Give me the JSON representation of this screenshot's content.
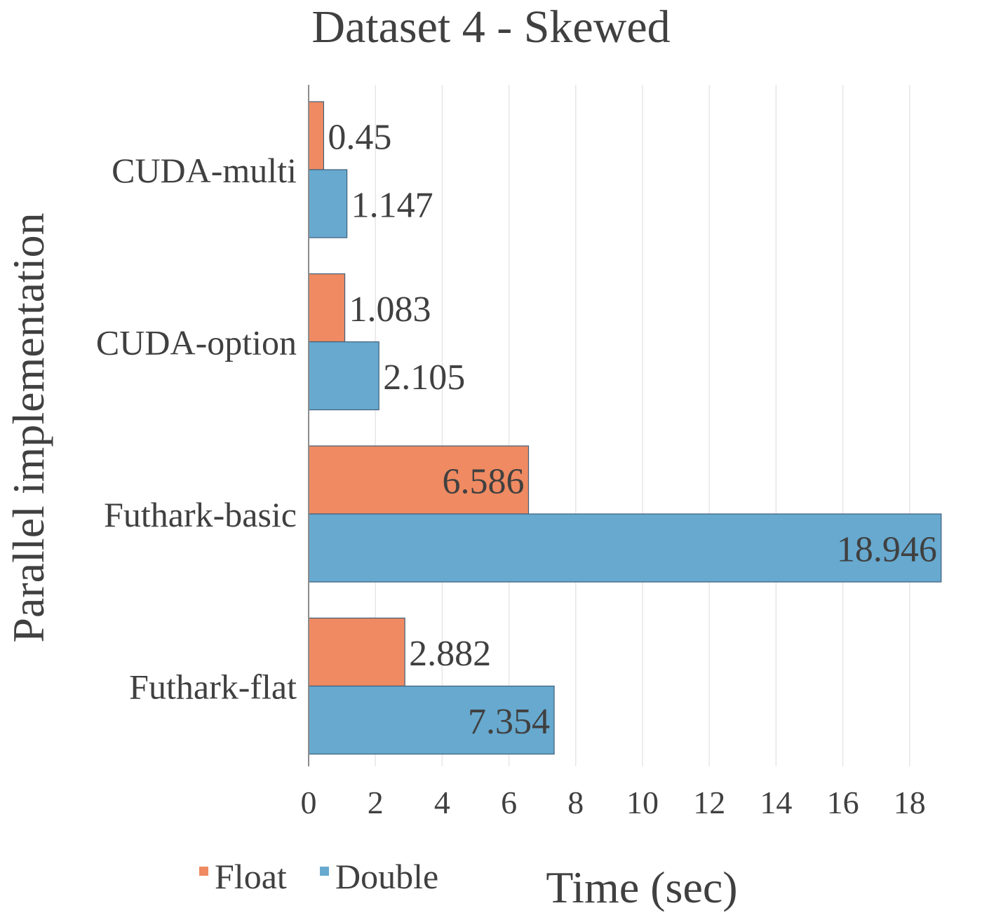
{
  "chart_data": {
    "type": "bar",
    "orientation": "horizontal",
    "title": "Dataset 4 - Skewed",
    "xlabel": "Time (sec)",
    "ylabel": "Parallel implementation",
    "categories": [
      "CUDA-multi",
      "CUDA-option",
      "Futhark-basic",
      "Futhark-flat"
    ],
    "series": [
      {
        "name": "Float",
        "values": [
          0.45,
          1.083,
          6.586,
          2.882
        ],
        "value_labels": [
          "0.45",
          "1.083",
          "6.586",
          "2.882"
        ],
        "color": "#EF8A62"
      },
      {
        "name": "Double",
        "values": [
          1.147,
          2.105,
          18.946,
          7.354
        ],
        "value_labels": [
          "1.147",
          "2.105",
          "18.946",
          "7.354"
        ],
        "color": "#67A9CF"
      }
    ],
    "xlim": [
      0,
      19
    ],
    "xticks": [
      0,
      2,
      4,
      6,
      8,
      10,
      12,
      14,
      16,
      18
    ],
    "grid": "vertical",
    "legend_position": "bottom-left"
  }
}
